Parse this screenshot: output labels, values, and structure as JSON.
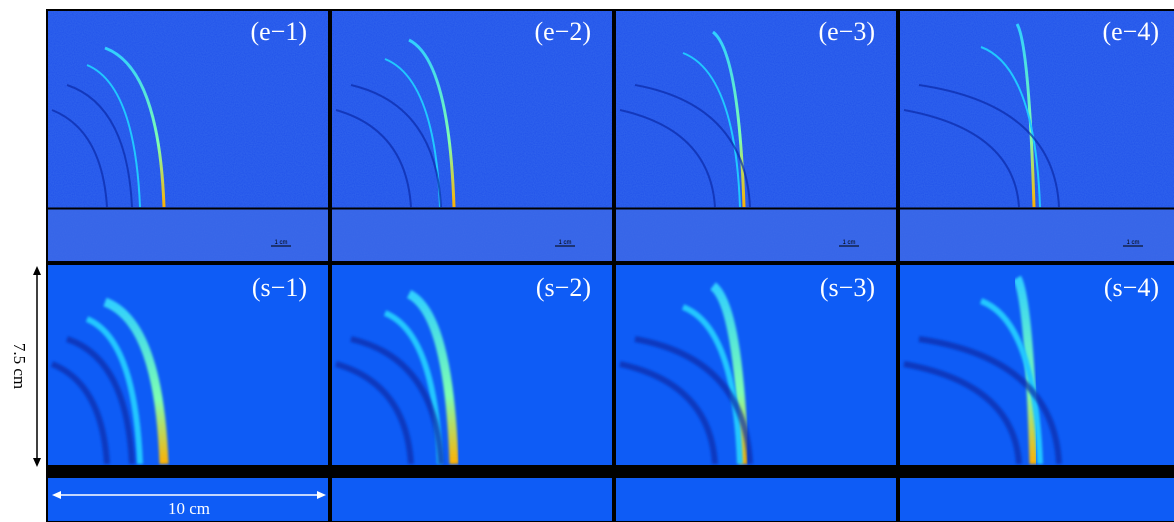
{
  "experiment": {
    "panels": [
      {
        "label": "(e−1)",
        "scale_bar": "1 cm"
      },
      {
        "label": "(e−2)",
        "scale_bar": "1 cm"
      },
      {
        "label": "(e−3)",
        "scale_bar": "1 cm"
      },
      {
        "label": "(e−4)",
        "scale_bar": "1 cm"
      }
    ]
  },
  "simulation": {
    "panels": [
      {
        "label": "(s−1)"
      },
      {
        "label": "(s−2)"
      },
      {
        "label": "(s−3)"
      },
      {
        "label": "(s−4)"
      }
    ]
  },
  "dimensions": {
    "height": "7.5 cm",
    "width": "10 cm"
  }
}
